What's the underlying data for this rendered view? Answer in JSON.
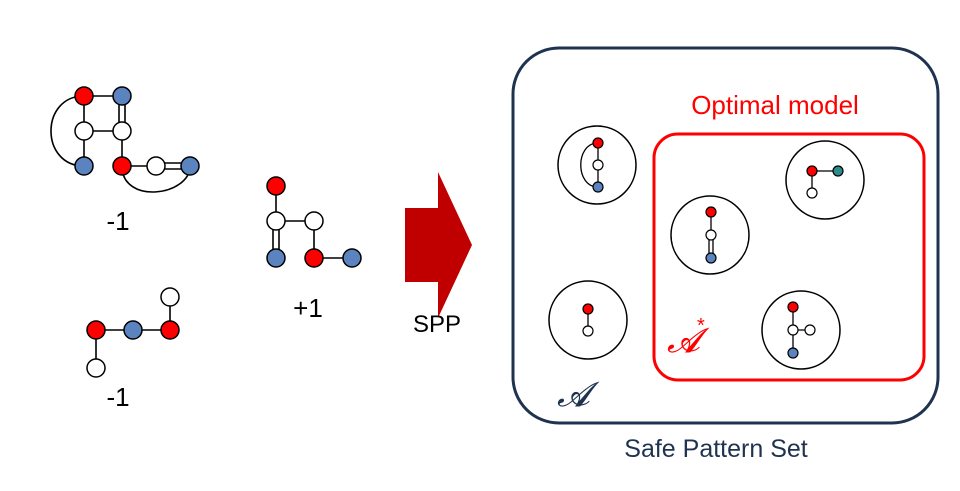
{
  "labels": {
    "graph1_label": "-1",
    "graph2_label": "-1",
    "graph3_label": "+1",
    "arrow_label": "SPP",
    "inner_box_title": "Optimal model",
    "inner_set_symbol": "𝓐",
    "inner_set_sup": "*",
    "outer_set_symbol": "𝓐",
    "caption": "Safe Pattern Set"
  },
  "colors": {
    "red_node": "#ff0000",
    "blue_node": "#5b83c0",
    "teal_node": "#2e8b8b",
    "white_node": "#ffffff",
    "arrow": "#c00000",
    "outer_border": "#1f3350",
    "inner_border": "#ff0000",
    "caption_text": "#1f3350"
  }
}
